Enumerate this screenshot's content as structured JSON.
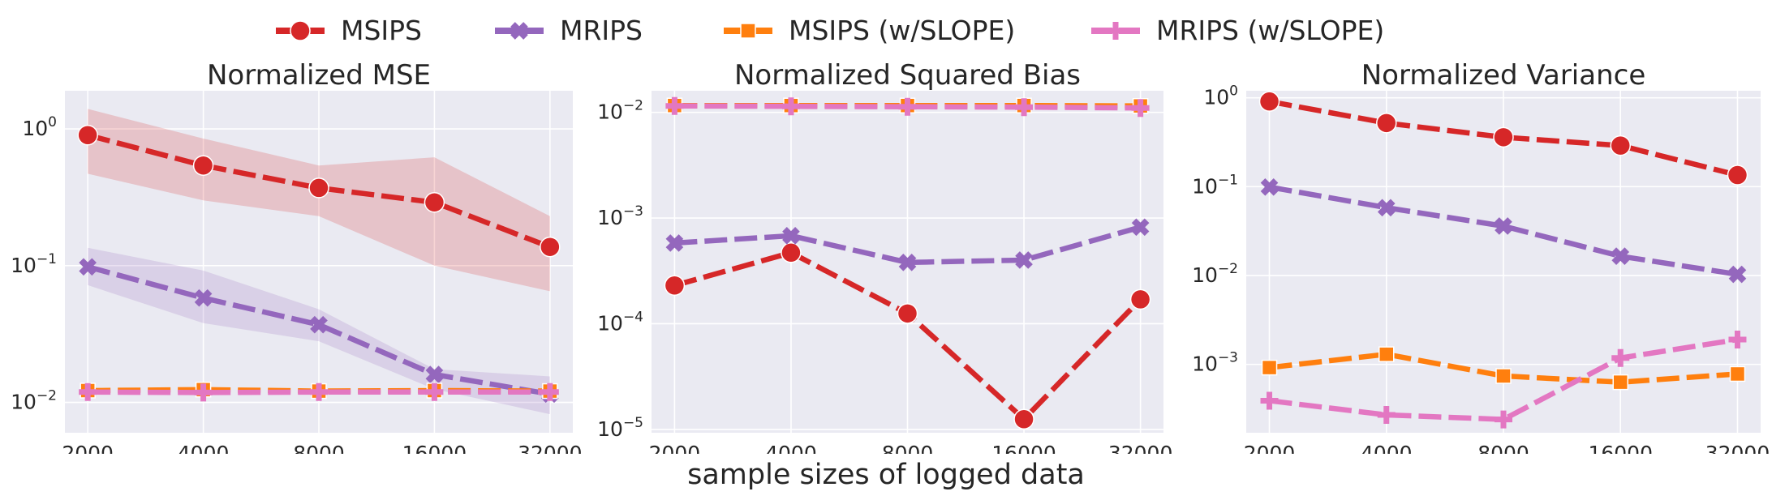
{
  "legend": [
    {
      "name": "MSIPS",
      "color": "#d62728",
      "marker": "circle"
    },
    {
      "name": "MRIPS",
      "color": "#9467bd",
      "marker": "x"
    },
    {
      "name": "MSIPS (w/SLOPE)",
      "color": "#ff7f0e",
      "marker": "square"
    },
    {
      "name": "MRIPS (w/SLOPE)",
      "color": "#e377c2",
      "marker": "plus"
    }
  ],
  "xlabel": "sample sizes of logged data",
  "chart_data": [
    {
      "type": "line",
      "title": "Normalized MSE",
      "xscale": "log2",
      "yscale": "log",
      "categories": [
        "2000",
        "4000",
        "8000",
        "16000",
        "32000"
      ],
      "ylim": [
        0.006,
        1.9
      ],
      "yticks": [
        0.01,
        0.1,
        1
      ],
      "ytick_labels": [
        {
          "base": "10",
          "exp": "−2"
        },
        {
          "base": "10",
          "exp": "−1"
        },
        {
          "base": "10",
          "exp": "0"
        }
      ],
      "grid": true,
      "series": [
        {
          "name": "MSIPS",
          "values": [
            0.9,
            0.54,
            0.37,
            0.29,
            0.137
          ],
          "band_low": [
            0.47,
            0.3,
            0.23,
            0.1,
            0.065
          ],
          "band_high": [
            1.4,
            0.85,
            0.54,
            0.62,
            0.23
          ]
        },
        {
          "name": "MRIPS",
          "values": [
            0.098,
            0.058,
            0.037,
            0.016,
            0.0115
          ],
          "band_low": [
            0.072,
            0.038,
            0.028,
            0.0125,
            0.0082
          ],
          "band_high": [
            0.135,
            0.092,
            0.048,
            0.0175,
            0.0155
          ]
        },
        {
          "name": "MSIPS (w/SLOPE)",
          "values": [
            0.0122,
            0.0124,
            0.0121,
            0.0122,
            0.0121
          ]
        },
        {
          "name": "MRIPS (w/SLOPE)",
          "values": [
            0.0119,
            0.0118,
            0.0119,
            0.0119,
            0.0119
          ]
        }
      ]
    },
    {
      "type": "line",
      "title": "Normalized Squared Bias",
      "xscale": "log2",
      "yscale": "log",
      "categories": [
        "2000",
        "4000",
        "8000",
        "16000",
        "32000"
      ],
      "ylim": [
        9.3e-06,
        0.016
      ],
      "yticks": [
        1e-05,
        0.0001,
        0.001,
        0.01
      ],
      "ytick_labels": [
        {
          "base": "10",
          "exp": "−5"
        },
        {
          "base": "10",
          "exp": "−4"
        },
        {
          "base": "10",
          "exp": "−3"
        },
        {
          "base": "10",
          "exp": "−2"
        }
      ],
      "grid": true,
      "series": [
        {
          "name": "MSIPS",
          "values": [
            0.00023,
            0.00047,
            0.000125,
            1.25e-05,
            0.00017
          ]
        },
        {
          "name": "MRIPS",
          "values": [
            0.00058,
            0.00068,
            0.00038,
            0.0004,
            0.00082
          ]
        },
        {
          "name": "MSIPS (w/SLOPE)",
          "values": [
            0.0116,
            0.0116,
            0.0116,
            0.0116,
            0.0115
          ]
        },
        {
          "name": "MRIPS (w/SLOPE)",
          "values": [
            0.0115,
            0.0114,
            0.0113,
            0.0112,
            0.011
          ]
        }
      ]
    },
    {
      "type": "line",
      "title": "Normalized Variance",
      "xscale": "log2",
      "yscale": "log",
      "categories": [
        "2000",
        "4000",
        "8000",
        "16000",
        "32000"
      ],
      "ylim": [
        0.00017,
        1.2
      ],
      "yticks": [
        0.001,
        0.01,
        0.1,
        1
      ],
      "ytick_labels": [
        {
          "base": "10",
          "exp": "−3"
        },
        {
          "base": "10",
          "exp": "−2"
        },
        {
          "base": "10",
          "exp": "−1"
        },
        {
          "base": "10",
          "exp": "0"
        }
      ],
      "grid": true,
      "series": [
        {
          "name": "MSIPS",
          "values": [
            0.91,
            0.52,
            0.36,
            0.29,
            0.135
          ]
        },
        {
          "name": "MRIPS",
          "values": [
            0.099,
            0.058,
            0.036,
            0.0165,
            0.0103
          ]
        },
        {
          "name": "MSIPS (w/SLOPE)",
          "values": [
            0.00092,
            0.0013,
            0.00074,
            0.00063,
            0.00078
          ]
        },
        {
          "name": "MRIPS (w/SLOPE)",
          "values": [
            0.00039,
            0.00027,
            0.00024,
            0.00118,
            0.0019
          ]
        }
      ]
    }
  ]
}
